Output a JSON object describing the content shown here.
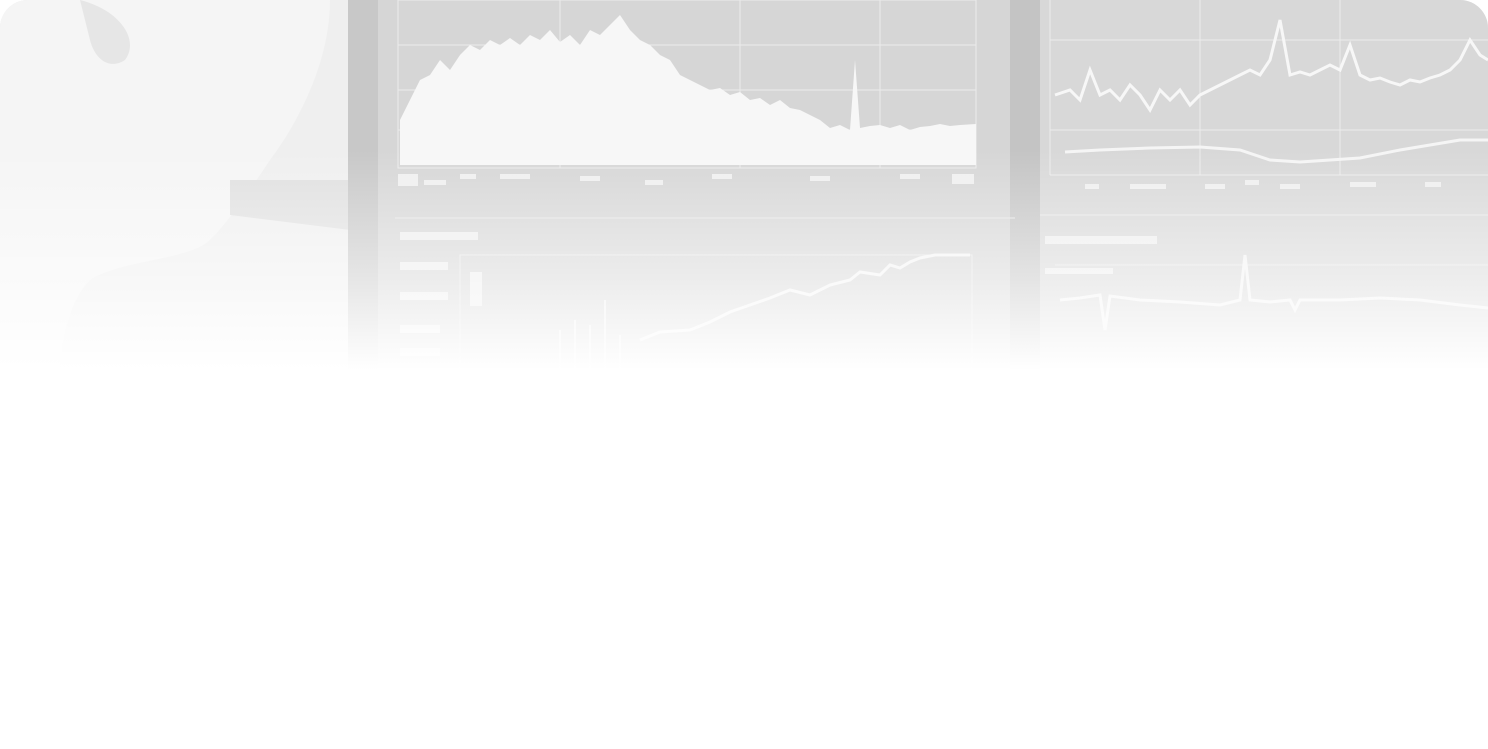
{
  "image": {
    "subject": "person-at-trading-monitors",
    "style": "faded grayscale photograph"
  },
  "colors": {
    "background": "#ffffff",
    "photo_tint": "#ebebeb",
    "monitor_bezel": "#c9c9c9",
    "screen": "#d9d9d9",
    "plot_line": "#fafafa"
  }
}
